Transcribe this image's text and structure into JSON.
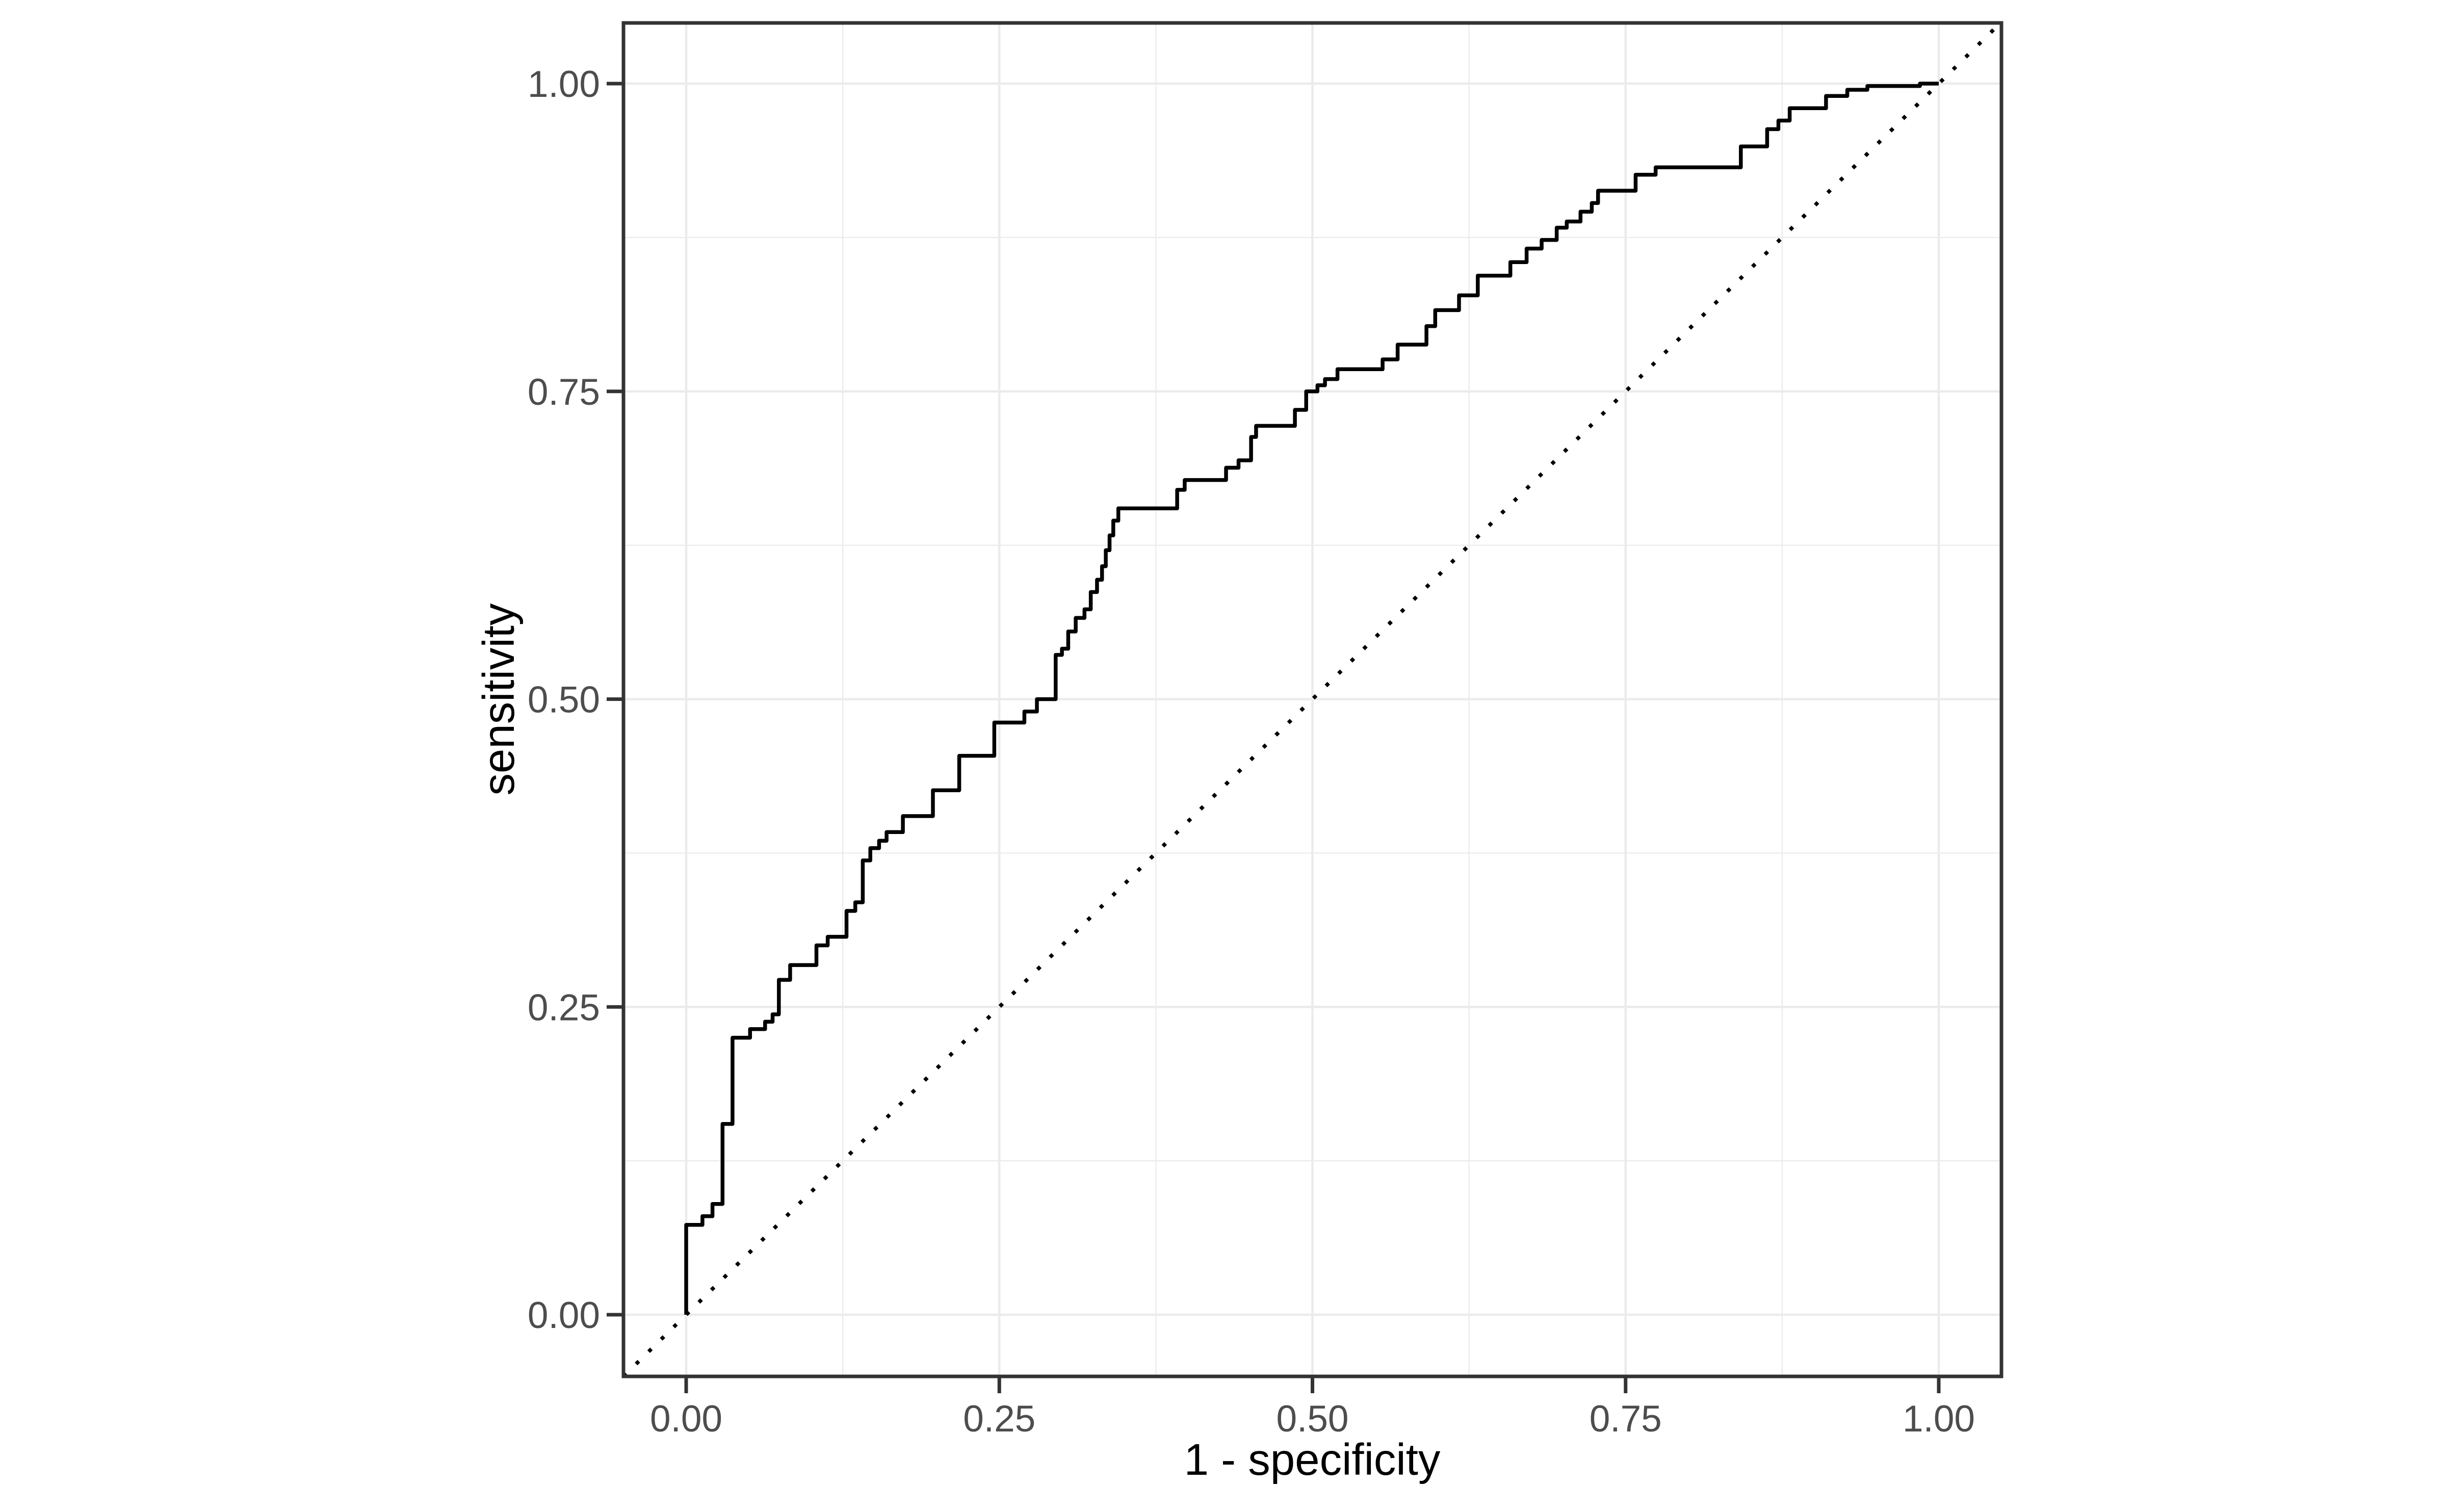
{
  "chart_data": {
    "type": "line",
    "subtype": "roc-step-curve",
    "title": "",
    "xlabel": "1 - specificity",
    "ylabel": "sensitivity",
    "xlim": [
      -0.05,
      1.05
    ],
    "ylim": [
      -0.05,
      1.05
    ],
    "grid": "on",
    "legend_position": "none",
    "x_ticks": {
      "values": [
        0.0,
        0.25,
        0.5,
        0.75,
        1.0
      ],
      "labels": [
        "0.00",
        "0.25",
        "0.50",
        "0.75",
        "1.00"
      ]
    },
    "y_ticks": {
      "values": [
        0.0,
        0.25,
        0.5,
        0.75,
        1.0
      ],
      "labels": [
        "0.00",
        "0.25",
        "0.50",
        "0.75",
        "1.00"
      ]
    },
    "x_minor_breaks": [
      0.125,
      0.375,
      0.625,
      0.875
    ],
    "y_minor_breaks": [
      0.125,
      0.375,
      0.625,
      0.875
    ],
    "series": [
      {
        "name": "roc-curve",
        "style": "step",
        "color": "#000000",
        "points": [
          [
            0.0,
            0.0
          ],
          [
            0.0,
            0.073
          ],
          [
            0.013,
            0.08
          ],
          [
            0.021,
            0.09
          ],
          [
            0.029,
            0.155
          ],
          [
            0.037,
            0.225
          ],
          [
            0.051,
            0.232
          ],
          [
            0.063,
            0.238
          ],
          [
            0.069,
            0.244
          ],
          [
            0.074,
            0.272
          ],
          [
            0.083,
            0.284
          ],
          [
            0.104,
            0.3
          ],
          [
            0.113,
            0.307
          ],
          [
            0.128,
            0.328
          ],
          [
            0.135,
            0.335
          ],
          [
            0.141,
            0.369
          ],
          [
            0.147,
            0.379
          ],
          [
            0.154,
            0.385
          ],
          [
            0.16,
            0.392
          ],
          [
            0.173,
            0.405
          ],
          [
            0.197,
            0.426
          ],
          [
            0.218,
            0.454
          ],
          [
            0.246,
            0.481
          ],
          [
            0.27,
            0.49
          ],
          [
            0.28,
            0.5
          ],
          [
            0.295,
            0.536
          ],
          [
            0.3,
            0.541
          ],
          [
            0.305,
            0.555
          ],
          [
            0.311,
            0.566
          ],
          [
            0.318,
            0.573
          ],
          [
            0.323,
            0.587
          ],
          [
            0.328,
            0.597
          ],
          [
            0.332,
            0.608
          ],
          [
            0.335,
            0.621
          ],
          [
            0.338,
            0.633
          ],
          [
            0.341,
            0.645
          ],
          [
            0.345,
            0.655
          ],
          [
            0.392,
            0.67
          ],
          [
            0.398,
            0.678
          ],
          [
            0.431,
            0.688
          ],
          [
            0.441,
            0.694
          ],
          [
            0.451,
            0.713
          ],
          [
            0.455,
            0.722
          ],
          [
            0.486,
            0.735
          ],
          [
            0.495,
            0.75
          ],
          [
            0.504,
            0.755
          ],
          [
            0.51,
            0.76
          ],
          [
            0.52,
            0.768
          ],
          [
            0.556,
            0.776
          ],
          [
            0.568,
            0.788
          ],
          [
            0.591,
            0.803
          ],
          [
            0.598,
            0.816
          ],
          [
            0.617,
            0.828
          ],
          [
            0.632,
            0.844
          ],
          [
            0.658,
            0.855
          ],
          [
            0.671,
            0.866
          ],
          [
            0.683,
            0.873
          ],
          [
            0.695,
            0.883
          ],
          [
            0.703,
            0.888
          ],
          [
            0.714,
            0.896
          ],
          [
            0.723,
            0.903
          ],
          [
            0.728,
            0.913
          ],
          [
            0.758,
            0.926
          ],
          [
            0.774,
            0.932
          ],
          [
            0.842,
            0.949
          ],
          [
            0.863,
            0.963
          ],
          [
            0.872,
            0.97
          ],
          [
            0.881,
            0.98
          ],
          [
            0.91,
            0.99
          ],
          [
            0.927,
            0.995
          ],
          [
            0.943,
            0.998
          ],
          [
            0.985,
            1.0
          ],
          [
            1.0,
            1.0
          ]
        ]
      },
      {
        "name": "chance-reference-line",
        "style": "dotted",
        "color": "#000000",
        "points": [
          [
            -0.05,
            -0.05
          ],
          [
            1.05,
            1.05
          ]
        ]
      }
    ],
    "colors": {
      "panel_background": "#FFFFFF",
      "plot_background": "#FFFFFF",
      "grid_major": "#EBEBEB",
      "grid_minor": "#EBEBEB",
      "panel_border": "#333333",
      "tick_mark": "#333333",
      "tick_label": "#4D4D4D",
      "axis_title": "#000000",
      "curve": "#000000"
    }
  }
}
